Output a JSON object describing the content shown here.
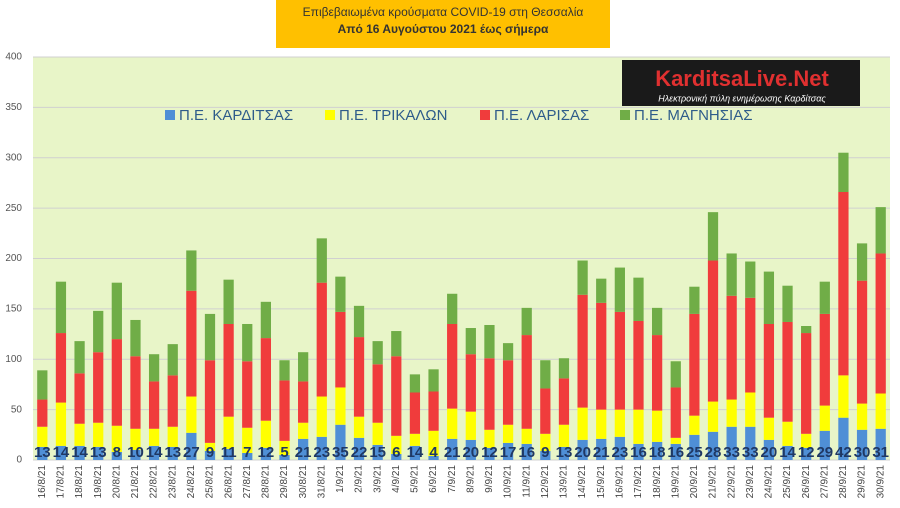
{
  "chart_data": {
    "type": "bar",
    "stacked": true,
    "title": "Επιβεβαιωμένα κρούσματα COVID-19 στη Θεσσαλία",
    "subtitle": "Από 16 Αυγούστου 2021 έως σήμερα",
    "categories": [
      "16/8/21",
      "17/8/21",
      "18/8/21",
      "19/8/21",
      "20/8/21",
      "21/8/21",
      "22/8/21",
      "23/8/21",
      "24/8/21",
      "25/8/21",
      "26/8/21",
      "27/8/21",
      "28/8/21",
      "29/8/21",
      "30/8/21",
      "31/8/21",
      "1/9/21",
      "2/9/21",
      "3/9/21",
      "4/9/21",
      "5/9/21",
      "6/9/21",
      "7/9/21",
      "8/9/21",
      "9/9/21",
      "10/9/21",
      "11/9/21",
      "12/9/21",
      "13/9/21",
      "14/9/21",
      "15/9/21",
      "16/9/21",
      "17/9/21",
      "18/9/21",
      "19/9/21",
      "20/9/21",
      "21/9/21",
      "22/9/21",
      "23/9/21",
      "24/9/21",
      "25/9/21",
      "26/9/21",
      "27/9/21",
      "28/9/21",
      "29/9/21",
      "30/9/21"
    ],
    "series": [
      {
        "name": "Π.Ε. ΚΑΡΔΙΤΣΑΣ",
        "color": "#4f8fd6",
        "show_labels": true,
        "values": [
          13,
          14,
          14,
          13,
          8,
          10,
          14,
          13,
          27,
          9,
          11,
          7,
          12,
          5,
          21,
          23,
          35,
          22,
          15,
          6,
          14,
          4,
          21,
          20,
          12,
          17,
          16,
          9,
          13,
          20,
          21,
          23,
          16,
          18,
          16,
          25,
          28,
          33,
          33,
          20,
          14,
          12,
          29,
          42,
          30,
          31
        ]
      },
      {
        "name": "Π.Ε. ΤΡΙΚΑΛΩΝ",
        "color": "#ffff00",
        "values": [
          20,
          43,
          22,
          24,
          26,
          21,
          17,
          20,
          36,
          8,
          32,
          25,
          27,
          14,
          16,
          40,
          37,
          21,
          22,
          18,
          12,
          25,
          30,
          28,
          18,
          18,
          15,
          17,
          22,
          32,
          29,
          27,
          34,
          31,
          6,
          19,
          30,
          27,
          34,
          22,
          24,
          14,
          25,
          42,
          26,
          35
        ]
      },
      {
        "name": "Π.Ε. ΛΑΡΙΣΑΣ",
        "color": "#f03c3c",
        "values": [
          27,
          69,
          50,
          70,
          86,
          72,
          47,
          51,
          105,
          82,
          92,
          66,
          82,
          60,
          41,
          113,
          75,
          79,
          58,
          79,
          41,
          39,
          84,
          57,
          71,
          64,
          93,
          45,
          46,
          112,
          106,
          97,
          88,
          75,
          50,
          101,
          140,
          103,
          94,
          93,
          99,
          100,
          91,
          182,
          122,
          139
        ]
      },
      {
        "name": "Π.Ε. ΜΑΓΝΗΣΙΑΣ",
        "color": "#70ad47",
        "values": [
          29,
          51,
          32,
          41,
          56,
          36,
          27,
          31,
          40,
          46,
          44,
          37,
          36,
          20,
          29,
          44,
          35,
          31,
          23,
          25,
          18,
          22,
          30,
          26,
          33,
          17,
          27,
          28,
          20,
          34,
          24,
          44,
          43,
          27,
          26,
          27,
          48,
          42,
          36,
          52,
          36,
          7,
          32,
          39,
          37,
          46
        ]
      }
    ],
    "ylim": [
      0,
      400
    ],
    "yticks": [
      0,
      50,
      100,
      150,
      200,
      250,
      300,
      350,
      400
    ],
    "grid": true
  },
  "logo": {
    "title": "KarditsaLive.Net",
    "subtitle": "Ηλεκτρονική πύλη ενημέρωσης Καρδίτσας"
  }
}
